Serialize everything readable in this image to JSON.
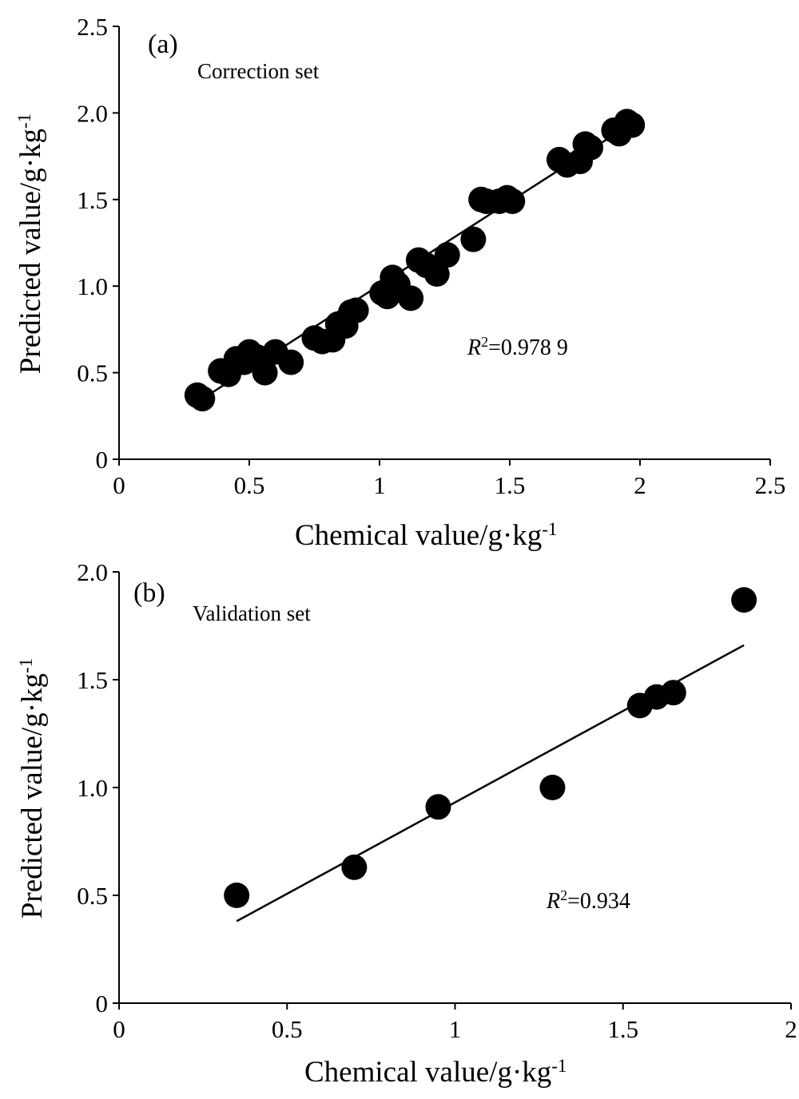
{
  "chart_data": [
    {
      "type": "scatter",
      "panel_label": "(a)",
      "set_label": "Correction set",
      "xlabel": "Chemical value/g·kg",
      "xlabel_sup": "-1",
      "ylabel": "Predicted value/g·kg",
      "ylabel_sup": "-1",
      "xlim": [
        0,
        2.5
      ],
      "ylim": [
        0,
        2.5
      ],
      "xticks": [
        0,
        0.5,
        1,
        1.5,
        2,
        2.5
      ],
      "xtick_labels": [
        "0",
        "0.5",
        "1",
        "1.5",
        "2",
        "2.5"
      ],
      "yticks": [
        0,
        0.5,
        1.0,
        1.5,
        2.0,
        2.5
      ],
      "ytick_labels": [
        "0",
        "0.5",
        "1.0",
        "1.5",
        "2.0",
        "2.5"
      ],
      "annotation": {
        "prefix": "R",
        "sup": "2",
        "text": "=0.978 9"
      },
      "fit_line": {
        "x": [
          0.3,
          2.0
        ],
        "y": [
          0.33,
          1.97
        ]
      },
      "points": [
        {
          "x": 0.3,
          "y": 0.37
        },
        {
          "x": 0.32,
          "y": 0.35
        },
        {
          "x": 0.39,
          "y": 0.51
        },
        {
          "x": 0.42,
          "y": 0.49
        },
        {
          "x": 0.45,
          "y": 0.58
        },
        {
          "x": 0.48,
          "y": 0.56
        },
        {
          "x": 0.5,
          "y": 0.62
        },
        {
          "x": 0.53,
          "y": 0.59
        },
        {
          "x": 0.56,
          "y": 0.5
        },
        {
          "x": 0.6,
          "y": 0.62
        },
        {
          "x": 0.66,
          "y": 0.56
        },
        {
          "x": 0.75,
          "y": 0.7
        },
        {
          "x": 0.78,
          "y": 0.68
        },
        {
          "x": 0.82,
          "y": 0.69
        },
        {
          "x": 0.84,
          "y": 0.78
        },
        {
          "x": 0.87,
          "y": 0.77
        },
        {
          "x": 0.89,
          "y": 0.85
        },
        {
          "x": 0.91,
          "y": 0.86
        },
        {
          "x": 1.01,
          "y": 0.96
        },
        {
          "x": 1.03,
          "y": 0.94
        },
        {
          "x": 1.05,
          "y": 1.05
        },
        {
          "x": 1.07,
          "y": 1.01
        },
        {
          "x": 1.12,
          "y": 0.93
        },
        {
          "x": 1.15,
          "y": 1.15
        },
        {
          "x": 1.18,
          "y": 1.12
        },
        {
          "x": 1.22,
          "y": 1.07
        },
        {
          "x": 1.26,
          "y": 1.18
        },
        {
          "x": 1.36,
          "y": 1.27
        },
        {
          "x": 1.39,
          "y": 1.5
        },
        {
          "x": 1.41,
          "y": 1.49
        },
        {
          "x": 1.46,
          "y": 1.49
        },
        {
          "x": 1.49,
          "y": 1.51
        },
        {
          "x": 1.51,
          "y": 1.49
        },
        {
          "x": 1.69,
          "y": 1.73
        },
        {
          "x": 1.72,
          "y": 1.7
        },
        {
          "x": 1.77,
          "y": 1.72
        },
        {
          "x": 1.79,
          "y": 1.82
        },
        {
          "x": 1.81,
          "y": 1.8
        },
        {
          "x": 1.9,
          "y": 1.9
        },
        {
          "x": 1.92,
          "y": 1.88
        },
        {
          "x": 1.95,
          "y": 1.95
        },
        {
          "x": 1.97,
          "y": 1.93
        }
      ]
    },
    {
      "type": "scatter",
      "panel_label": "(b)",
      "set_label": "Validation set",
      "xlabel": "Chemical value/g·kg",
      "xlabel_sup": "-1",
      "ylabel": "Predicted value/g·kg",
      "ylabel_sup": "-1",
      "xlim": [
        0,
        2
      ],
      "ylim": [
        0,
        2.0
      ],
      "xticks": [
        0,
        0.5,
        1,
        1.5,
        2
      ],
      "xtick_labels": [
        "0",
        "0.5",
        "1",
        "1.5",
        "2"
      ],
      "yticks": [
        0,
        0.5,
        1.0,
        1.5,
        2.0
      ],
      "ytick_labels": [
        "0",
        "0.5",
        "1.0",
        "1.5",
        "2.0"
      ],
      "annotation": {
        "prefix": "R",
        "sup": "2",
        "text": "=0.934"
      },
      "fit_line": {
        "x": [
          0.35,
          1.86
        ],
        "y": [
          0.38,
          1.66
        ]
      },
      "points": [
        {
          "x": 0.35,
          "y": 0.5
        },
        {
          "x": 0.7,
          "y": 0.63
        },
        {
          "x": 0.95,
          "y": 0.91
        },
        {
          "x": 1.29,
          "y": 1.0
        },
        {
          "x": 1.55,
          "y": 1.38
        },
        {
          "x": 1.6,
          "y": 1.42
        },
        {
          "x": 1.65,
          "y": 1.44
        },
        {
          "x": 1.86,
          "y": 1.87
        }
      ]
    }
  ]
}
